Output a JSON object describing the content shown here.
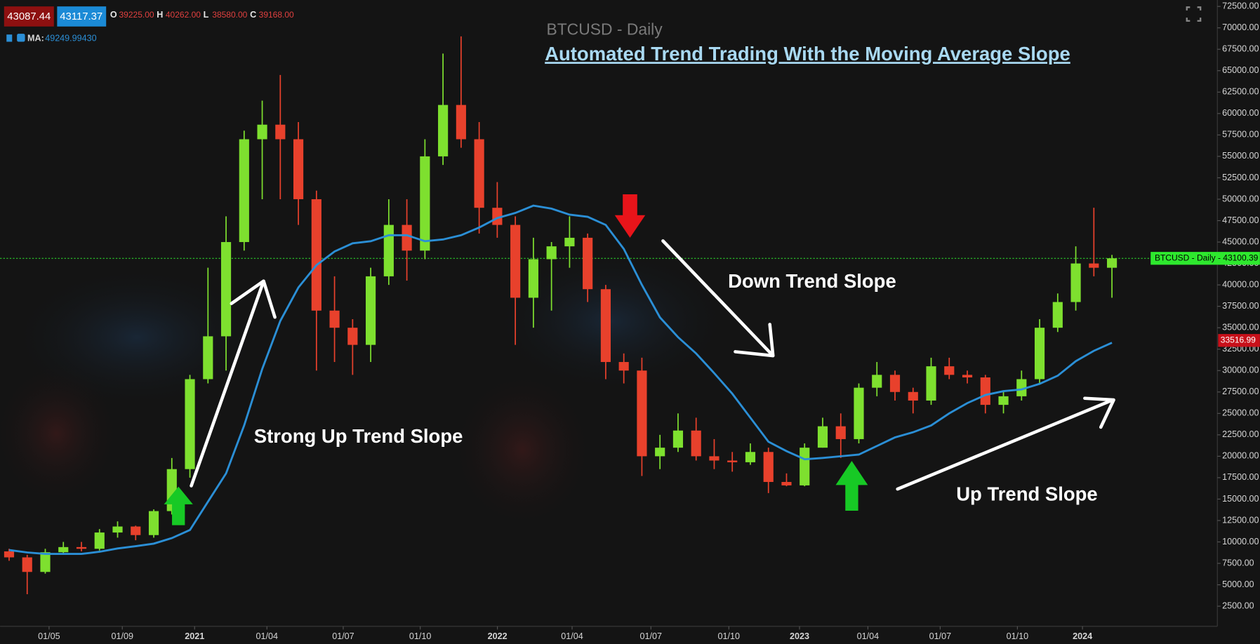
{
  "chart_data": {
    "type": "candlestick",
    "title": "BTCUSD - Daily",
    "subtitle": "Automated Trend Trading With the Moving Average Slope",
    "legend": {
      "bid": "43087.44",
      "ask": "43117.37",
      "ohlc": [
        {
          "key": "O",
          "value": "39225.00"
        },
        {
          "key": "H",
          "value": "40262.00"
        },
        {
          "key": "L",
          "value": "38580.00"
        },
        {
          "key": "C",
          "value": "39168.00"
        }
      ],
      "ma_label": "MA:",
      "ma_value": "49249.99430"
    },
    "x": [
      0.5,
      1.5,
      2.5,
      3.5,
      4.5,
      5.5,
      6.5,
      7.5,
      8.5,
      9.5,
      10.5,
      11.5,
      12.5,
      13.5,
      14.5,
      15.5,
      16.5,
      17.5,
      18.5,
      19.5,
      20.5,
      21.5,
      22.5,
      23.5,
      24.5,
      25.5,
      26.5,
      27.5,
      28.5,
      29.5,
      30.5,
      31.5,
      32.5,
      33.5,
      34.5,
      35.5,
      36.5,
      37.5,
      38.5,
      39.5,
      40.5,
      41.5,
      42.5,
      43.5,
      44.5,
      45.5,
      46.5,
      47.5,
      48.5,
      49.5,
      50.5,
      51.5,
      52.5,
      53.5,
      54.5,
      55.5,
      56.5,
      57.5,
      58.5,
      59.5,
      60.5,
      61.5
    ],
    "open": [
      8900,
      8200,
      6500,
      8800,
      9400,
      9200,
      11100,
      11800,
      10800,
      13600,
      18500,
      29000,
      34000,
      45000,
      57000,
      58700,
      57000,
      50000,
      37000,
      35000,
      33000,
      41000,
      47000,
      44000,
      55000,
      61000,
      57000,
      49000,
      47000,
      38500,
      43000,
      44500,
      45500,
      39500,
      31000,
      30000,
      20000,
      21000,
      23000,
      20000,
      19500,
      19300,
      20500,
      17000,
      16600,
      21000,
      23500,
      22000,
      28000,
      29500,
      27500,
      26500,
      30500,
      29500,
      29200,
      26000,
      27000,
      29000,
      35000,
      38000,
      42500,
      42000
    ],
    "high": [
      9200,
      8500,
      9200,
      10000,
      10000,
      11500,
      12400,
      11900,
      13800,
      19800,
      29500,
      42000,
      48000,
      58000,
      61500,
      64500,
      59000,
      51000,
      41000,
      36000,
      42000,
      50000,
      50000,
      57000,
      67000,
      69000,
      59000,
      52000,
      48000,
      45500,
      45000,
      48000,
      46000,
      40000,
      32000,
      31500,
      22500,
      25000,
      24500,
      22000,
      20500,
      21500,
      21000,
      18000,
      21500,
      24500,
      25000,
      28500,
      31000,
      30000,
      28000,
      31500,
      31500,
      30000,
      29500,
      27500,
      30000,
      36000,
      39000,
      44500,
      49000,
      43500
    ],
    "low": [
      7800,
      3900,
      6300,
      8500,
      8900,
      9000,
      10500,
      10200,
      10500,
      13200,
      17500,
      28500,
      30000,
      44000,
      50000,
      50000,
      47000,
      30000,
      31000,
      29500,
      31000,
      40000,
      40500,
      43000,
      54000,
      56000,
      46000,
      45500,
      33000,
      35000,
      37000,
      42000,
      38000,
      29000,
      28500,
      17700,
      18500,
      20500,
      19500,
      18500,
      18200,
      19000,
      15700,
      16500,
      16500,
      21000,
      19800,
      21500,
      27000,
      26500,
      25000,
      26000,
      29000,
      28500,
      25000,
      25000,
      26500,
      28500,
      34500,
      37000,
      41000,
      38500
    ],
    "close": [
      8200,
      6500,
      8800,
      9400,
      9200,
      11100,
      11800,
      10800,
      13600,
      18500,
      29000,
      34000,
      45000,
      57000,
      58700,
      57000,
      50000,
      37000,
      35000,
      33000,
      41000,
      47000,
      44000,
      55000,
      61000,
      57000,
      49000,
      47000,
      38500,
      43000,
      44500,
      45500,
      39500,
      31000,
      30000,
      20000,
      21000,
      23000,
      20000,
      19500,
      19300,
      20500,
      17000,
      16600,
      21000,
      23500,
      22000,
      28000,
      29500,
      27500,
      26500,
      30500,
      29500,
      29200,
      26000,
      27000,
      29000,
      35000,
      38000,
      42500,
      42000,
      43100
    ],
    "up_color": "#7ee02f",
    "down_color": "#e8412c",
    "ma": {
      "color": "#2b8fd6",
      "values": [
        9050,
        8770,
        8600,
        8600,
        8600,
        8860,
        9240,
        9500,
        9800,
        10450,
        11400,
        14700,
        18000,
        23600,
        30200,
        35800,
        39700,
        42300,
        43900,
        44850,
        45100,
        45800,
        45800,
        45100,
        45300,
        45800,
        46700,
        47800,
        48400,
        49250,
        48900,
        48200,
        47950,
        47000,
        44200,
        40000,
        36200,
        33900,
        32000,
        29700,
        27300,
        24500,
        21700,
        20600,
        19650,
        19800,
        20000,
        20200,
        21200,
        22200,
        22800,
        23600,
        25000,
        26200,
        27150,
        27600,
        27800,
        28450,
        29400,
        31100,
        32300,
        33250
      ]
    },
    "last_price": {
      "value": 43100.39,
      "label": "BTCUSD - Daily - 43100.39",
      "color": "#2ee82e"
    },
    "ma_last": {
      "value": 33516.99,
      "label": "33516.99",
      "color": "#c8101a"
    },
    "xlim": [
      0,
      67.33
    ],
    "xticks": [
      {
        "value": 2.71,
        "label": "01/05"
      },
      {
        "value": 6.76,
        "label": "01/09"
      },
      {
        "value": 10.76,
        "label": "2021"
      },
      {
        "value": 14.76,
        "label": "01/04"
      },
      {
        "value": 18.98,
        "label": "01/07"
      },
      {
        "value": 23.24,
        "label": "01/10"
      },
      {
        "value": 27.51,
        "label": "2022"
      },
      {
        "value": 31.64,
        "label": "01/04"
      },
      {
        "value": 36.0,
        "label": "01/07"
      },
      {
        "value": 40.31,
        "label": "01/10"
      },
      {
        "value": 44.22,
        "label": "2023"
      },
      {
        "value": 48.0,
        "label": "01/04"
      },
      {
        "value": 52.0,
        "label": "01/07"
      },
      {
        "value": 56.27,
        "label": "01/10"
      },
      {
        "value": 59.87,
        "label": "2024"
      }
    ],
    "ylim": [
      150,
      73250
    ],
    "yticks": [
      {
        "value": 2500,
        "label": "2500.00"
      },
      {
        "value": 5000,
        "label": "5000.00"
      },
      {
        "value": 7500,
        "label": "7500.00"
      },
      {
        "value": 10000,
        "label": "10000.00"
      },
      {
        "value": 12500,
        "label": "12500.00"
      },
      {
        "value": 15000,
        "label": "15000.00"
      },
      {
        "value": 17500,
        "label": "17500.00"
      },
      {
        "value": 20000,
        "label": "20000.00"
      },
      {
        "value": 22500,
        "label": "22500.00"
      },
      {
        "value": 25000,
        "label": "25000.00"
      },
      {
        "value": 27500,
        "label": "27500.00"
      },
      {
        "value": 30000,
        "label": "30000.00"
      },
      {
        "value": 32500,
        "label": "32500.00"
      },
      {
        "value": 35000,
        "label": "35000.00"
      },
      {
        "value": 37500,
        "label": "37500.00"
      },
      {
        "value": 40000,
        "label": "40000.00"
      },
      {
        "value": 42500,
        "label": "42500.00"
      },
      {
        "value": 45000,
        "label": "45000.00"
      },
      {
        "value": 47500,
        "label": "47500.00"
      },
      {
        "value": 50000,
        "label": "50000.00"
      },
      {
        "value": 52500,
        "label": "52500.00"
      },
      {
        "value": 55000,
        "label": "55000.00"
      },
      {
        "value": 57500,
        "label": "57500.00"
      },
      {
        "value": 60000,
        "label": "60000.00"
      },
      {
        "value": 62500,
        "label": "62500.00"
      },
      {
        "value": 65000,
        "label": "65000.00"
      },
      {
        "value": 67500,
        "label": "67500.00"
      },
      {
        "value": 70000,
        "label": "70000.00"
      },
      {
        "value": 72500,
        "label": "72500.00"
      }
    ],
    "annotations": [
      "Strong Up Trend Slope",
      "Down Trend Slope",
      "Up Trend Slope"
    ]
  }
}
